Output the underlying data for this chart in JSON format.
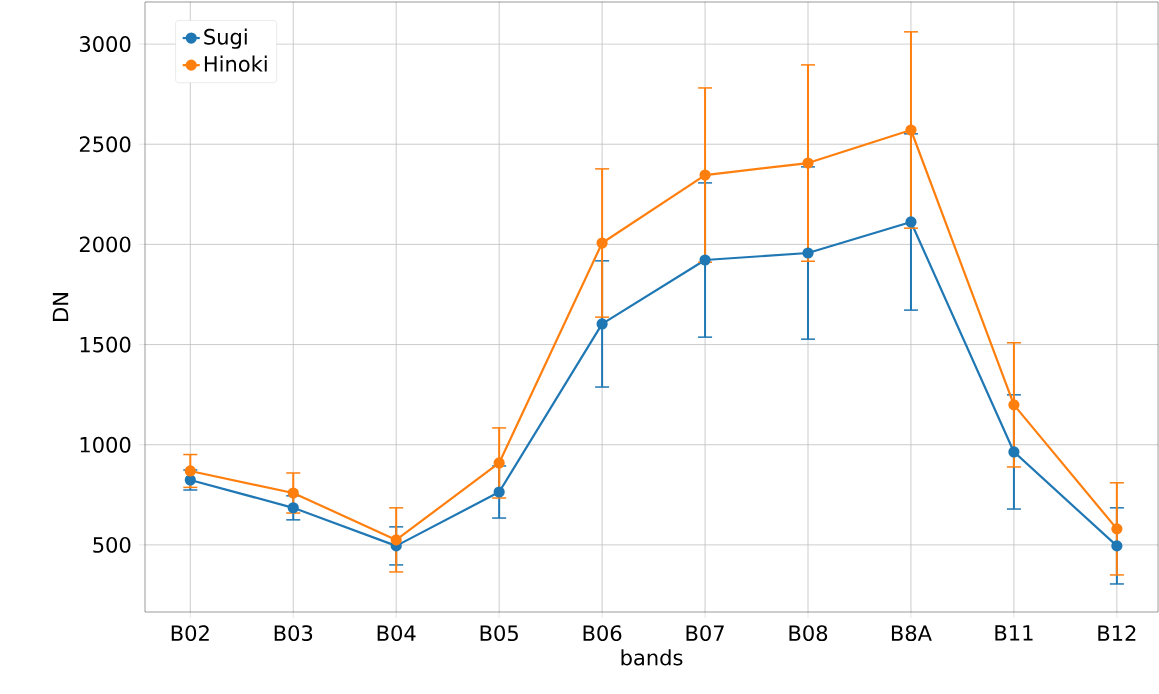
{
  "chart_data": {
    "type": "line",
    "xlabel": "bands",
    "ylabel": "DN",
    "categories": [
      "B02",
      "B03",
      "B04",
      "B05",
      "B06",
      "B07",
      "B08",
      "B8A",
      "B11",
      "B12"
    ],
    "series": [
      {
        "name": "Sugi",
        "color": "#1f77b4",
        "values": [
          824,
          685,
          495,
          764,
          1603,
          1922,
          1957,
          2112,
          964,
          495
        ],
        "errors": [
          50,
          60,
          95,
          130,
          315,
          385,
          430,
          440,
          285,
          190
        ]
      },
      {
        "name": "Hinoki",
        "color": "#ff7f0e",
        "values": [
          869,
          759,
          525,
          909,
          2007,
          2346,
          2406,
          2571,
          1199,
          580
        ],
        "errors": [
          82,
          100,
          160,
          175,
          370,
          435,
          490,
          490,
          310,
          230
        ]
      }
    ],
    "ylim": [
      165,
      3210
    ],
    "yticks": [
      500,
      1000,
      1500,
      2000,
      2500,
      3000
    ],
    "grid": true,
    "legend": "top left",
    "marker": "circle",
    "line_style": "solid"
  }
}
